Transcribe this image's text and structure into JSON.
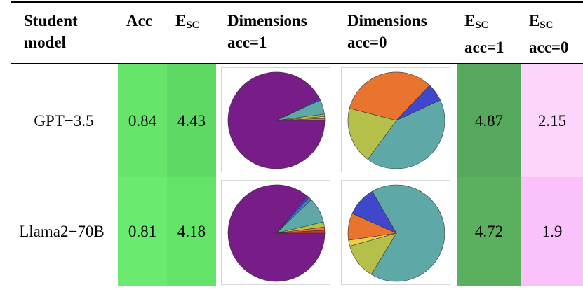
{
  "headers": {
    "student_line1": "Student",
    "student_line2": "model",
    "acc": "Acc",
    "esc_main": "E",
    "esc_sub": "SC",
    "dims1_line1": "Dimensions",
    "dims1_line2": "acc=1",
    "dims0_line1": "Dimensions",
    "dims0_line2": "acc=0",
    "esc1_main": "E",
    "esc1_sub": "SC",
    "esc1_line2": "acc=1",
    "esc0_main": "E",
    "esc0_sub": "SC",
    "esc0_line2": "acc=0"
  },
  "rows": [
    {
      "model": "GPT−3.5",
      "acc": "0.84",
      "esc": "4.43",
      "esc_acc1": "4.87",
      "esc_acc0": "2.15",
      "colors": {
        "acc_bg": "#67e56a",
        "esc_bg": "#5ed964",
        "esc1_bg": "#55a85c",
        "esc0_bg": "#fbd5fb"
      },
      "pie_acc1": [
        {
          "label": "violet",
          "value": 0.925,
          "color": "#781c87"
        },
        {
          "label": "blue",
          "value": 0.006,
          "color": "#3f48cc"
        },
        {
          "label": "teal",
          "value": 0.048,
          "color": "#5fa8a8"
        },
        {
          "label": "olive",
          "value": 0.008,
          "color": "#b5c04a"
        },
        {
          "label": "yellow",
          "value": 0.006,
          "color": "#e6d24a"
        },
        {
          "label": "orange",
          "value": 0.005,
          "color": "#e8742f"
        },
        {
          "label": "red",
          "value": 0.002,
          "color": "#d43030"
        }
      ],
      "pie_acc0": [
        {
          "label": "teal",
          "value": 0.42,
          "color": "#5fa8a8"
        },
        {
          "label": "olive",
          "value": 0.19,
          "color": "#b5c04a"
        },
        {
          "label": "orange",
          "value": 0.33,
          "color": "#e8742f"
        },
        {
          "label": "blue",
          "value": 0.06,
          "color": "#3f48cc"
        }
      ]
    },
    {
      "model": "Llama2−70B",
      "acc": "0.81",
      "esc": "4.18",
      "esc_acc1": "4.72",
      "esc_acc0": "1.9",
      "colors": {
        "acc_bg": "#6bea70",
        "esc_bg": "#63e469",
        "esc1_bg": "#5bb060",
        "esc0_bg": "#fbc1fb"
      },
      "pie_acc1": [
        {
          "label": "violet",
          "value": 0.86,
          "color": "#781c87"
        },
        {
          "label": "blue",
          "value": 0.008,
          "color": "#3f48cc"
        },
        {
          "label": "royal",
          "value": 0.01,
          "color": "#4a7fd0"
        },
        {
          "label": "teal",
          "value": 0.085,
          "color": "#5fa8a8"
        },
        {
          "label": "olive",
          "value": 0.017,
          "color": "#b5c04a"
        },
        {
          "label": "orange",
          "value": 0.01,
          "color": "#e8742f"
        },
        {
          "label": "red",
          "value": 0.01,
          "color": "#d43030"
        }
      ],
      "pie_acc0": [
        {
          "label": "teal",
          "value": 0.67,
          "color": "#5fa8a8"
        },
        {
          "label": "olive",
          "value": 0.12,
          "color": "#b5c04a"
        },
        {
          "label": "yellow",
          "value": 0.02,
          "color": "#e6d24a"
        },
        {
          "label": "orange",
          "value": 0.09,
          "color": "#e8742f"
        },
        {
          "label": "blue",
          "value": 0.1,
          "color": "#3f48cc"
        }
      ]
    }
  ]
}
